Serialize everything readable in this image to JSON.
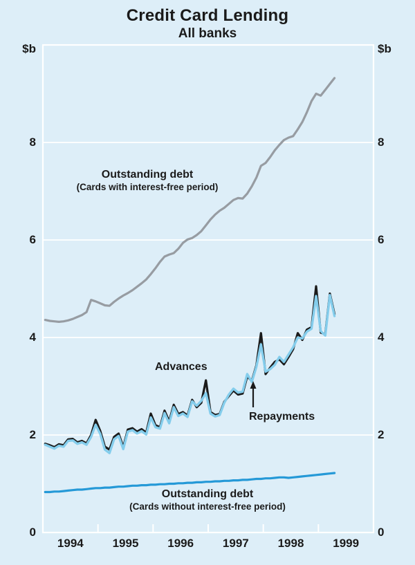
{
  "chart": {
    "title": "Credit Card Lending",
    "subtitle": "All banks",
    "y_unit": "$b"
  },
  "chart_data": {
    "type": "line",
    "title": "Credit Card Lending",
    "subtitle": "All banks",
    "ylabel_left": "$b",
    "ylabel_right": "$b",
    "xlim": [
      1994,
      2000
    ],
    "ylim": [
      0,
      10
    ],
    "y_ticks": [
      0,
      2,
      4,
      6,
      8
    ],
    "y_gridlines": [
      2,
      4,
      6,
      8
    ],
    "x_tick_labels": [
      "1994",
      "1995",
      "1996",
      "1997",
      "1998",
      "1999"
    ],
    "grid": true,
    "legend_position": "inline-annotations",
    "x_start": 1994.0,
    "x_step_months": 1,
    "colors": {
      "background": "#ddeef8",
      "frame_and_grid": "#ffffff",
      "text": "#1a1a1a"
    },
    "series": [
      {
        "id": "outstanding-debt-interest-free",
        "name": "Outstanding debt (Cards with interest-free period)",
        "color": "#979ca2",
        "width": 3.2,
        "values": [
          4.36,
          4.34,
          4.33,
          4.32,
          4.33,
          4.35,
          4.38,
          4.42,
          4.46,
          4.52,
          4.77,
          4.74,
          4.7,
          4.66,
          4.65,
          4.73,
          4.8,
          4.86,
          4.91,
          4.97,
          5.04,
          5.11,
          5.19,
          5.3,
          5.42,
          5.55,
          5.66,
          5.7,
          5.73,
          5.82,
          5.94,
          6.01,
          6.04,
          6.1,
          6.18,
          6.3,
          6.42,
          6.52,
          6.6,
          6.66,
          6.74,
          6.82,
          6.86,
          6.85,
          6.95,
          7.1,
          7.28,
          7.52,
          7.58,
          7.7,
          7.84,
          7.95,
          8.05,
          8.1,
          8.13,
          8.27,
          8.42,
          8.62,
          8.85,
          9.0,
          8.96,
          9.08,
          9.2,
          9.32
        ]
      },
      {
        "id": "advances",
        "name": "Advances",
        "color": "#1b1b1b",
        "width": 3.2,
        "values": [
          1.82,
          1.79,
          1.75,
          1.81,
          1.79,
          1.91,
          1.92,
          1.85,
          1.88,
          1.83,
          2.0,
          2.31,
          2.08,
          1.76,
          1.7,
          1.96,
          2.03,
          1.75,
          2.11,
          2.14,
          2.07,
          2.12,
          2.05,
          2.44,
          2.2,
          2.16,
          2.5,
          2.28,
          2.62,
          2.43,
          2.47,
          2.4,
          2.72,
          2.57,
          2.66,
          3.12,
          2.47,
          2.41,
          2.43,
          2.68,
          2.8,
          2.91,
          2.83,
          2.85,
          3.2,
          3.11,
          3.43,
          4.09,
          3.25,
          3.38,
          3.5,
          3.55,
          3.45,
          3.6,
          3.76,
          4.09,
          3.95,
          4.16,
          4.21,
          5.05,
          4.1,
          4.07,
          4.9,
          4.48
        ]
      },
      {
        "id": "repayments",
        "name": "Repayments",
        "color": "#84cdec",
        "width": 3.4,
        "values": [
          1.8,
          1.76,
          1.72,
          1.78,
          1.76,
          1.88,
          1.89,
          1.82,
          1.85,
          1.8,
          1.96,
          2.21,
          2.02,
          1.7,
          1.63,
          1.91,
          1.98,
          1.71,
          2.07,
          2.1,
          2.03,
          2.08,
          2.01,
          2.36,
          2.16,
          2.13,
          2.45,
          2.24,
          2.57,
          2.39,
          2.44,
          2.37,
          2.69,
          2.6,
          2.7,
          2.86,
          2.44,
          2.38,
          2.41,
          2.66,
          2.83,
          2.95,
          2.87,
          2.89,
          3.25,
          3.09,
          3.4,
          3.86,
          3.3,
          3.35,
          3.44,
          3.6,
          3.5,
          3.65,
          3.8,
          4.0,
          3.98,
          4.12,
          4.18,
          4.85,
          4.13,
          4.04,
          4.87,
          4.44
        ]
      },
      {
        "id": "outstanding-debt-no-interest-free",
        "name": "Outstanding debt (Cards without interest-free period)",
        "color": "#2599d7",
        "width": 3.2,
        "values": [
          0.83,
          0.83,
          0.84,
          0.84,
          0.85,
          0.86,
          0.87,
          0.88,
          0.88,
          0.89,
          0.9,
          0.91,
          0.91,
          0.92,
          0.92,
          0.93,
          0.94,
          0.94,
          0.95,
          0.96,
          0.96,
          0.97,
          0.97,
          0.98,
          0.98,
          0.99,
          0.99,
          1.0,
          1.0,
          1.01,
          1.01,
          1.02,
          1.02,
          1.03,
          1.03,
          1.04,
          1.04,
          1.05,
          1.05,
          1.06,
          1.06,
          1.07,
          1.07,
          1.08,
          1.08,
          1.09,
          1.1,
          1.1,
          1.11,
          1.11,
          1.12,
          1.13,
          1.13,
          1.12,
          1.13,
          1.14,
          1.15,
          1.16,
          1.17,
          1.18,
          1.19,
          1.2,
          1.21,
          1.22
        ]
      }
    ],
    "annotations": {
      "outstanding_ifp": {
        "title": "Outstanding debt",
        "subtitle": "(Cards with interest-free period)"
      },
      "advances": {
        "label": "Advances"
      },
      "repayments": {
        "label": "Repayments",
        "arrow": {
          "x": 366,
          "y_tail": 589,
          "y_tip": 551
        }
      },
      "outstanding_no_ifp": {
        "title": "Outstanding debt",
        "subtitle": "(Cards without interest-free period)"
      }
    }
  }
}
